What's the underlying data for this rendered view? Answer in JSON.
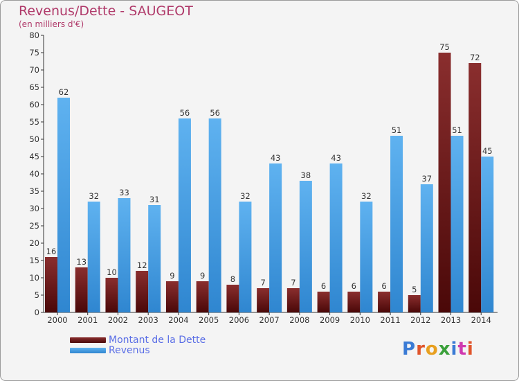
{
  "title": "Revenus/Dette - SAUGEOT",
  "subtitle": "(en milliers d'€)",
  "logo": {
    "text": "Proxiti",
    "colors": [
      "#3a7bd5",
      "#e0552b",
      "#e8a020",
      "#3aa03a",
      "#3a7bd5",
      "#d03ab0",
      "#e0552b"
    ]
  },
  "legend": [
    {
      "label": "Montant de la Dette",
      "color": "#6b1d1d"
    },
    {
      "label": "Revenus",
      "color": "#4aa3e8"
    }
  ],
  "chart_data": {
    "type": "bar",
    "title": "Revenus/Dette - SAUGEOT",
    "subtitle": "(en milliers d'€)",
    "categories": [
      "2000",
      "2001",
      "2002",
      "2003",
      "2004",
      "2005",
      "2006",
      "2007",
      "2008",
      "2009",
      "2010",
      "2011",
      "2012",
      "2013",
      "2014"
    ],
    "series": [
      {
        "name": "Montant de la Dette",
        "color": "#7a2424",
        "values": [
          16,
          13,
          10,
          12,
          9,
          9,
          8,
          7,
          7,
          6,
          6,
          6,
          5,
          75,
          72
        ]
      },
      {
        "name": "Revenus",
        "color": "#4aa3e8",
        "values": [
          62,
          32,
          33,
          31,
          56,
          56,
          32,
          43,
          38,
          43,
          32,
          51,
          37,
          51,
          45
        ]
      }
    ],
    "ylim": [
      0,
      80
    ],
    "yticks": [
      0,
      5,
      10,
      15,
      20,
      25,
      30,
      35,
      40,
      45,
      50,
      55,
      60,
      65,
      70,
      75,
      80
    ],
    "grid": false,
    "legend_position": "bottom-left"
  }
}
